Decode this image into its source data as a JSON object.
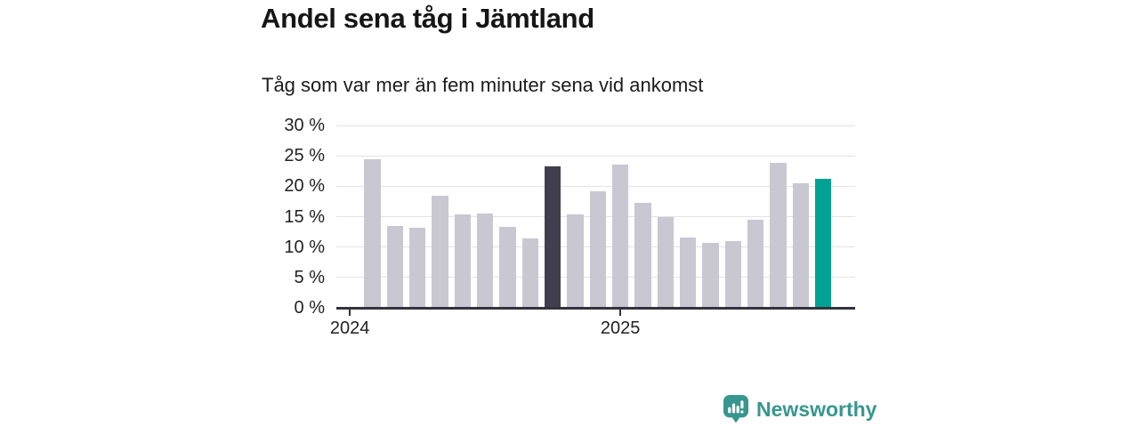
{
  "header": {
    "title": "Andel sena tåg i Jämtland",
    "subtitle": "Tåg som var mer än fem minuter sena vid ankomst"
  },
  "chart_data": {
    "type": "bar",
    "title": "Andel sena tåg i Jämtland",
    "subtitle": "Tåg som var mer än fem minuter sena vid ankomst",
    "unit": "%",
    "ylim": [
      0,
      30
    ],
    "grid": true,
    "y_ticks": [
      {
        "value": 0,
        "label": "0 %"
      },
      {
        "value": 5,
        "label": "5 %"
      },
      {
        "value": 10,
        "label": "10 %"
      },
      {
        "value": 15,
        "label": "15 %"
      },
      {
        "value": 20,
        "label": "20 %"
      },
      {
        "value": 25,
        "label": "25 %"
      },
      {
        "value": 30,
        "label": "30 %"
      }
    ],
    "x_ticks": [
      {
        "label": "2024",
        "bar_offset": -1
      },
      {
        "label": "2025",
        "bar_offset": 11
      }
    ],
    "values": [
      24.5,
      13.5,
      13.1,
      18.4,
      15.3,
      15.5,
      13.3,
      11.4,
      23.2,
      15.4,
      19.1,
      23.5,
      17.2,
      14.9,
      11.6,
      10.7,
      11.0,
      14.5,
      23.8,
      20.5,
      21.2
    ],
    "highlighted_dark_index": 8,
    "highlighted_latest_index": 20,
    "colors": {
      "bar_default": "#c9c8d2",
      "bar_dark": "#413f4e",
      "bar_latest": "#00a296",
      "gridline": "#e3e3e7",
      "axis": "#34333d",
      "text": "#222222",
      "title_text": "#161616"
    }
  },
  "branding": {
    "logo_text": "Newsworthy",
    "brand_color": "#37978f",
    "logo_icon": "bar-chart-speech-bubble-icon"
  }
}
